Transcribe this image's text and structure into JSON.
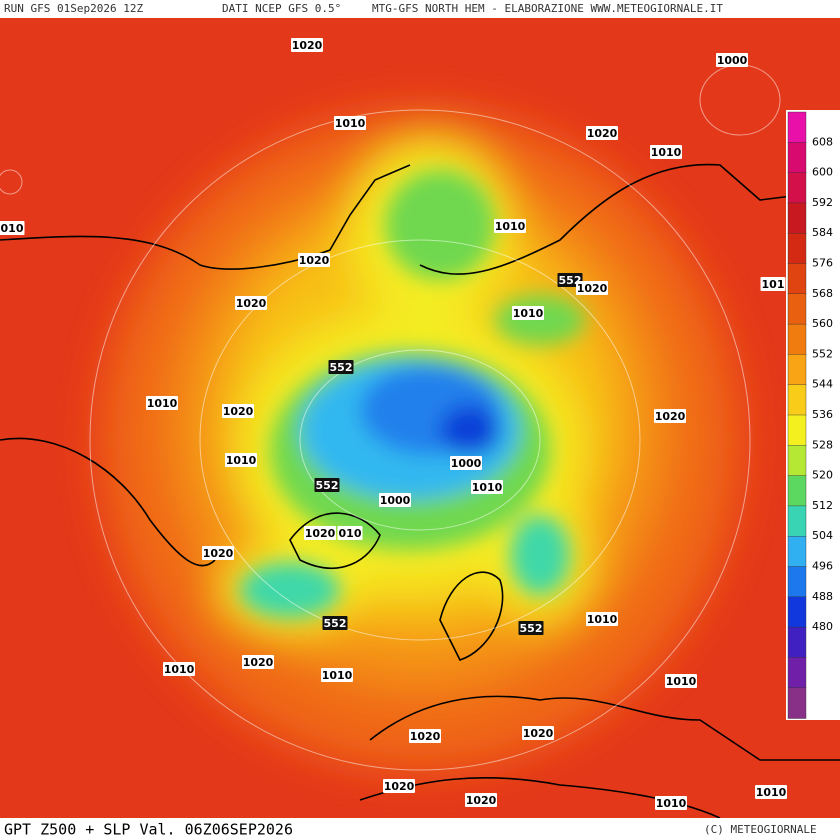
{
  "header": {
    "run": "RUN GFS 01Sep2026 12Z",
    "source": "DATI NCEP GFS 0.5°",
    "product": "MTG-GFS NORTH HEM - ELABORAZIONE WWW.METEOGIORNALE.IT"
  },
  "footer": {
    "title": "GPT Z500 + SLP Val. 06Z06SEP2026",
    "credit": "(C) METEOGIORNALE"
  },
  "colorbar": {
    "labels": [
      "608",
      "600",
      "592",
      "584",
      "576",
      "568",
      "560",
      "552",
      "544",
      "536",
      "528",
      "520",
      "512",
      "504",
      "496",
      "488",
      "480"
    ],
    "colors": [
      "#e810a8",
      "#d80a70",
      "#d4104a",
      "#c81820",
      "#d42a14",
      "#e04410",
      "#e86010",
      "#f07c10",
      "#f8a414",
      "#f8cc18",
      "#f4f020",
      "#b4e834",
      "#5cd860",
      "#38d4b4",
      "#30b0f0",
      "#1c78ec",
      "#1038dc",
      "#4020c0",
      "#7020a8",
      "#883088"
    ]
  },
  "contour_labels": [
    "1020",
    "1000",
    "1010",
    "1020",
    "1010",
    "010",
    "1010",
    "1020",
    "552",
    "1020",
    "101",
    "1020",
    "1010",
    "552",
    "1010",
    "1020",
    "1020",
    "1010",
    "1000",
    "1010",
    "552",
    "1000",
    "1020",
    "010",
    "1020",
    "552",
    "552",
    "1010",
    "1010",
    "1020",
    "1010",
    "1010",
    "1020",
    "1020",
    "1020",
    "1020",
    "1010",
    "1010"
  ]
}
